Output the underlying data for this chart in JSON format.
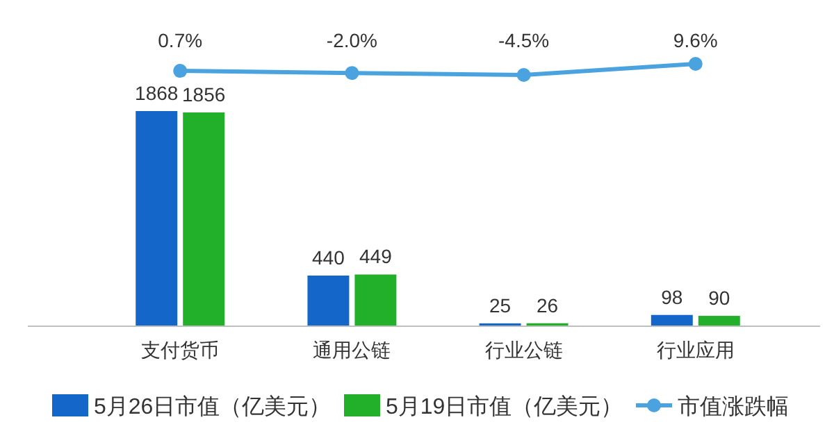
{
  "chart_data": [
    {
      "type": "line",
      "categories": [
        null,
        null,
        null,
        null
      ],
      "data_labels": true,
      "legend": "bottom",
      "marker": "circle",
      "series": [
        {
          "name": "市值涨跌幅",
          "color": "#4aa3df",
          "values": [
            0.7,
            -2.0,
            -4.5,
            9.6
          ],
          "value_labels": [
            "0.7%",
            "-2.0%",
            "-4.5%",
            "9.6%"
          ]
        }
      ]
    },
    {
      "type": "bar",
      "categories": [
        "支付货币",
        "通用公链",
        "行业公链",
        "行业应用"
      ],
      "tick_labels": "x",
      "data_labels": true,
      "legend": "bottom",
      "series": [
        {
          "name": "5月26日市值（亿美元）",
          "color": "#1467c9",
          "values": [
            1868,
            440,
            25,
            98
          ]
        },
        {
          "name": "5月19日市值（亿美元）",
          "color": "#22b02b",
          "values": [
            1856,
            449,
            26,
            90
          ]
        }
      ]
    }
  ]
}
